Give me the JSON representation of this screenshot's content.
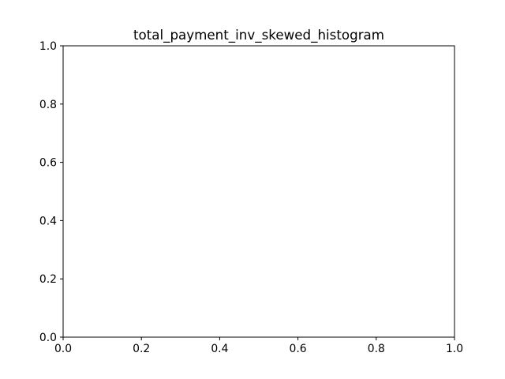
{
  "chart_data": {
    "type": "bar",
    "title": "total_payment_inv_skewed_histogram",
    "xlabel": "",
    "ylabel": "",
    "xlim": [
      0.0,
      1.0
    ],
    "ylim": [
      0.0,
      1.0
    ],
    "x_ticks": [
      "0.0",
      "0.2",
      "0.4",
      "0.6",
      "0.8",
      "1.0"
    ],
    "y_ticks": [
      "0.0",
      "0.2",
      "0.4",
      "0.6",
      "0.8",
      "1.0"
    ],
    "x_tick_values": [
      0.0,
      0.2,
      0.4,
      0.6,
      0.8,
      1.0
    ],
    "y_tick_values": [
      0.0,
      0.2,
      0.4,
      0.6,
      0.8,
      1.0
    ],
    "categories": [],
    "values": [],
    "grid": false,
    "legend": "none",
    "colors": {
      "axes": "#000000",
      "background": "#ffffff",
      "bar": "#1f77b4"
    }
  }
}
